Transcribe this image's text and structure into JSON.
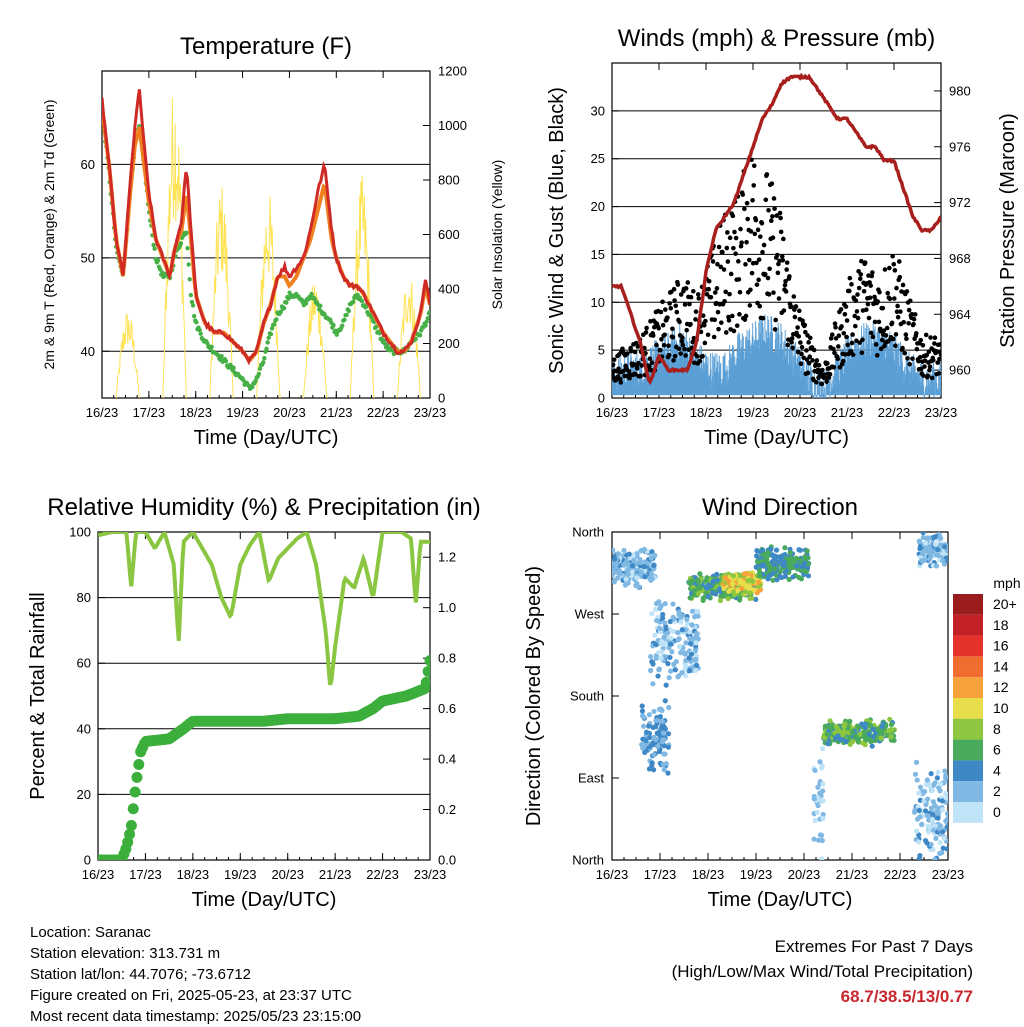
{
  "colors": {
    "temp_2m": "#cf2a26",
    "temp_9m": "#f07f1e",
    "dewpoint": "#46b046",
    "insolation": "#ffe357",
    "wind": "#5b9fd6",
    "gust": "#000000",
    "pressure": "#a8201e",
    "rh": "#8ac642",
    "precip": "#3cae3c",
    "extremes": "#c8282d"
  },
  "day_ticks": [
    "16/23",
    "17/23",
    "18/23",
    "19/23",
    "20/23",
    "21/23",
    "22/23",
    "23/23"
  ],
  "station": {
    "location": "Location: Saranac",
    "elevation": "Station elevation: 313.731 m",
    "latlon": "Station lat/lon: 44.7076; -73.6712",
    "created": "Figure created on Fri, 2025-05-23, at 23:37 UTC",
    "latest": "Most recent data timestamp: 2025/05/23 23:15:00"
  },
  "extremes": {
    "title": "Extremes For Past 7 Days",
    "subtitle": "(High/Low/Max Wind/Total Precipitation)",
    "values": "68.7/38.5/13/0.77"
  },
  "chart_data": [
    {
      "type": "line",
      "title": "Temperature (F)",
      "xlabel": "Time (Day/UTC)",
      "ylabel": "2m & 9m T (Red, Orange) & 2m Td (Green)",
      "ylabel_right": "Solar Insolation (Yellow)",
      "ylim": [
        35,
        70
      ],
      "ylim_right": [
        0,
        1200
      ],
      "yticks": [
        40,
        50,
        60
      ],
      "yticks_right": [
        0,
        200,
        400,
        600,
        800,
        1000,
        1200
      ],
      "grid": "horizontal",
      "x": [
        16.0,
        16.15,
        16.3,
        16.45,
        16.6,
        16.7,
        16.8,
        16.9,
        17.0,
        17.15,
        17.3,
        17.45,
        17.55,
        17.7,
        17.8,
        17.9,
        18.0,
        18.2,
        18.4,
        18.6,
        18.8,
        19.0,
        19.15,
        19.3,
        19.45,
        19.6,
        19.75,
        19.9,
        20.0,
        20.15,
        20.3,
        20.45,
        20.6,
        20.75,
        20.9,
        21.0,
        21.15,
        21.3,
        21.45,
        21.6,
        21.8,
        22.0,
        22.15,
        22.3,
        22.45,
        22.6,
        22.8,
        22.9,
        23.0
      ],
      "series": [
        {
          "values": [
            67,
            60,
            52,
            48,
            58,
            64,
            68,
            62,
            57,
            52,
            50,
            48,
            51,
            54,
            60,
            53,
            46,
            43,
            42,
            42,
            41,
            40,
            39,
            40,
            43,
            45,
            48,
            49,
            48,
            49,
            50,
            53,
            57,
            60,
            53,
            50,
            48,
            47,
            47,
            46,
            44,
            42,
            41,
            40,
            40,
            41,
            44,
            48,
            45
          ]
        },
        {
          "values": [
            66,
            60,
            52,
            48,
            57,
            62,
            64,
            60,
            56,
            52,
            50,
            48,
            51,
            53,
            57,
            52,
            46,
            43,
            42,
            42,
            41,
            40,
            39,
            40,
            43,
            45,
            48,
            48,
            47,
            48,
            50,
            52,
            55,
            58,
            52,
            50,
            48,
            47,
            47,
            46,
            44,
            42,
            41,
            40,
            40,
            41,
            44,
            47,
            45
          ]
        },
        {
          "values": [
            66,
            59,
            51,
            48,
            57,
            62,
            64,
            60,
            55,
            50,
            48,
            48,
            50,
            52,
            53,
            46,
            43,
            41,
            40,
            39,
            38,
            37,
            36,
            37,
            39,
            42,
            44,
            45,
            46,
            46,
            45,
            46,
            45,
            44,
            43,
            42,
            43,
            45,
            46,
            45,
            43,
            41,
            40,
            40,
            40,
            41,
            42,
            43,
            44
          ]
        }
      ]
    },
    {
      "type": "scatter",
      "title": "Winds (mph) & Pressure (mb)",
      "xlabel": "Time (Day/UTC)",
      "ylabel": "Sonic Wind & Gust (Blue, Black)",
      "ylabel_right": "Station Pressure (Maroon)",
      "ylim": [
        0,
        35
      ],
      "ylim_right": [
        958,
        982
      ],
      "yticks": [
        0,
        5,
        10,
        15,
        20,
        25,
        30
      ],
      "yticks_right": [
        960,
        964,
        968,
        972,
        976,
        980
      ],
      "grid": "horizontal",
      "pressure": {
        "x": [
          16.0,
          16.2,
          16.4,
          16.6,
          16.8,
          17.0,
          17.2,
          17.4,
          17.6,
          17.8,
          18.0,
          18.2,
          18.4,
          18.6,
          18.8,
          19.0,
          19.2,
          19.4,
          19.6,
          19.8,
          20.0,
          20.2,
          20.4,
          20.6,
          20.8,
          21.0,
          21.2,
          21.4,
          21.6,
          21.8,
          22.0,
          22.2,
          22.4,
          22.6,
          22.8,
          23.0
        ],
        "values": [
          966,
          966,
          964,
          962,
          959,
          961,
          960,
          960,
          960,
          962,
          967,
          970,
          971,
          972,
          974,
          976,
          978,
          979,
          980.5,
          981,
          981,
          981,
          980,
          979,
          978,
          978,
          977,
          976,
          976,
          975,
          975,
          973,
          971,
          970,
          970,
          971
        ]
      },
      "wind_mean": {
        "x": [
          16.0,
          16.3,
          16.6,
          16.9,
          17.2,
          17.5,
          17.8,
          18.1,
          18.4,
          18.7,
          19.0,
          19.3,
          19.6,
          19.9,
          20.2,
          20.5,
          20.8,
          21.1,
          21.4,
          21.7,
          22.0,
          22.3,
          22.6,
          22.9,
          23.0
        ],
        "values": [
          2,
          3,
          3,
          4,
          5,
          6,
          4,
          3,
          3,
          5,
          6,
          7,
          6,
          4,
          2,
          1,
          3,
          5,
          6,
          6,
          5,
          3,
          2,
          2,
          2
        ]
      },
      "gust": {
        "x": [
          16.0,
          16.3,
          16.6,
          16.9,
          17.2,
          17.5,
          17.8,
          18.1,
          18.4,
          18.7,
          19.0,
          19.3,
          19.6,
          19.9,
          20.2,
          20.5,
          20.8,
          21.1,
          21.4,
          21.7,
          22.0,
          22.3,
          22.6,
          22.9,
          23.0
        ],
        "values": [
          4,
          5,
          6,
          8,
          10,
          12,
          10,
          14,
          18,
          20,
          25,
          22,
          18,
          10,
          6,
          3,
          8,
          12,
          14,
          12,
          15,
          10,
          6,
          6,
          5
        ]
      }
    },
    {
      "type": "line",
      "title": "Relative Humidity (%) & Precipitation (in)",
      "xlabel": "Time (Day/UTC)",
      "ylabel": "Percent & Total Rainfall",
      "ylim": [
        0,
        100
      ],
      "ylim_right": [
        0,
        1.3
      ],
      "yticks": [
        0,
        20,
        40,
        60,
        80,
        100
      ],
      "yticks_right": [
        0.0,
        0.2,
        0.4,
        0.6,
        0.8,
        1.0,
        1.2
      ],
      "grid": "horizontal",
      "rh": {
        "x": [
          16.0,
          16.3,
          16.6,
          16.7,
          16.8,
          17.0,
          17.2,
          17.4,
          17.6,
          17.7,
          17.8,
          18.0,
          18.2,
          18.4,
          18.6,
          18.8,
          19.0,
          19.2,
          19.4,
          19.6,
          19.8,
          20.0,
          20.2,
          20.4,
          20.6,
          20.8,
          20.9,
          21.0,
          21.2,
          21.4,
          21.6,
          21.8,
          22.0,
          22.2,
          22.4,
          22.6,
          22.7,
          22.8,
          23.0
        ],
        "values": [
          99,
          100,
          100,
          83,
          100,
          100,
          95,
          100,
          90,
          66,
          97,
          100,
          95,
          90,
          80,
          74,
          90,
          96,
          100,
          85,
          92,
          95,
          98,
          100,
          90,
          70,
          52,
          65,
          86,
          83,
          92,
          80,
          100,
          100,
          100,
          98,
          78,
          97,
          97
        ]
      },
      "precip": {
        "x": [
          16.0,
          16.5,
          16.6,
          16.7,
          16.8,
          16.9,
          17.0,
          17.5,
          17.8,
          18.0,
          18.5,
          19.0,
          19.5,
          20.0,
          20.5,
          21.0,
          21.5,
          21.8,
          22.0,
          22.5,
          22.9,
          23.0
        ],
        "values": [
          0.0,
          0.0,
          0.05,
          0.13,
          0.3,
          0.43,
          0.47,
          0.48,
          0.52,
          0.55,
          0.55,
          0.55,
          0.55,
          0.56,
          0.56,
          0.56,
          0.57,
          0.6,
          0.63,
          0.65,
          0.68,
          0.79
        ]
      }
    },
    {
      "type": "scatter",
      "title": "Wind Direction",
      "xlabel": "Time (Day/UTC)",
      "ylabel": "Direction (Colored By Speed)",
      "ylim": [
        0,
        360
      ],
      "yticks": [
        "North",
        "East",
        "South",
        "West",
        "North"
      ],
      "grid": "horizontal",
      "legend_title": "mph",
      "legend": [
        {
          "label": "20+",
          "color": "#9b1c1c"
        },
        {
          "label": "18",
          "color": "#c22126"
        },
        {
          "label": "16",
          "color": "#e4312b"
        },
        {
          "label": "14",
          "color": "#f06d2f"
        },
        {
          "label": "12",
          "color": "#f9a13b"
        },
        {
          "label": "10",
          "color": "#e8de4c"
        },
        {
          "label": "8",
          "color": "#8dc63f"
        },
        {
          "label": "6",
          "color": "#4aaa5c"
        },
        {
          "label": "4",
          "color": "#3f88c6"
        },
        {
          "label": "2",
          "color": "#7fb8e3"
        },
        {
          "label": "0",
          "color": "#bfe3f7"
        }
      ],
      "clusters": [
        {
          "x0": 16.0,
          "x1": 16.9,
          "dir": 320,
          "spread": 18,
          "speed": 2
        },
        {
          "x0": 16.8,
          "x1": 17.8,
          "dir": 240,
          "spread": 40,
          "speed": 2
        },
        {
          "x0": 17.6,
          "x1": 19.0,
          "dir": 300,
          "spread": 12,
          "speed": 6
        },
        {
          "x0": 18.3,
          "x1": 19.1,
          "dir": 305,
          "spread": 10,
          "speed": 10
        },
        {
          "x0": 19.0,
          "x1": 20.1,
          "dir": 325,
          "spread": 15,
          "speed": 5
        },
        {
          "x0": 20.2,
          "x1": 20.4,
          "dir": 60,
          "spread": 60,
          "speed": 1
        },
        {
          "x0": 20.4,
          "x1": 21.9,
          "dir": 140,
          "spread": 12,
          "speed": 6
        },
        {
          "x0": 16.6,
          "x1": 17.2,
          "dir": 130,
          "spread": 35,
          "speed": 3
        },
        {
          "x0": 22.3,
          "x1": 23.0,
          "dir": 50,
          "spread": 45,
          "speed": 2
        },
        {
          "x0": 22.4,
          "x1": 23.0,
          "dir": 340,
          "spread": 15,
          "speed": 2
        }
      ]
    }
  ]
}
